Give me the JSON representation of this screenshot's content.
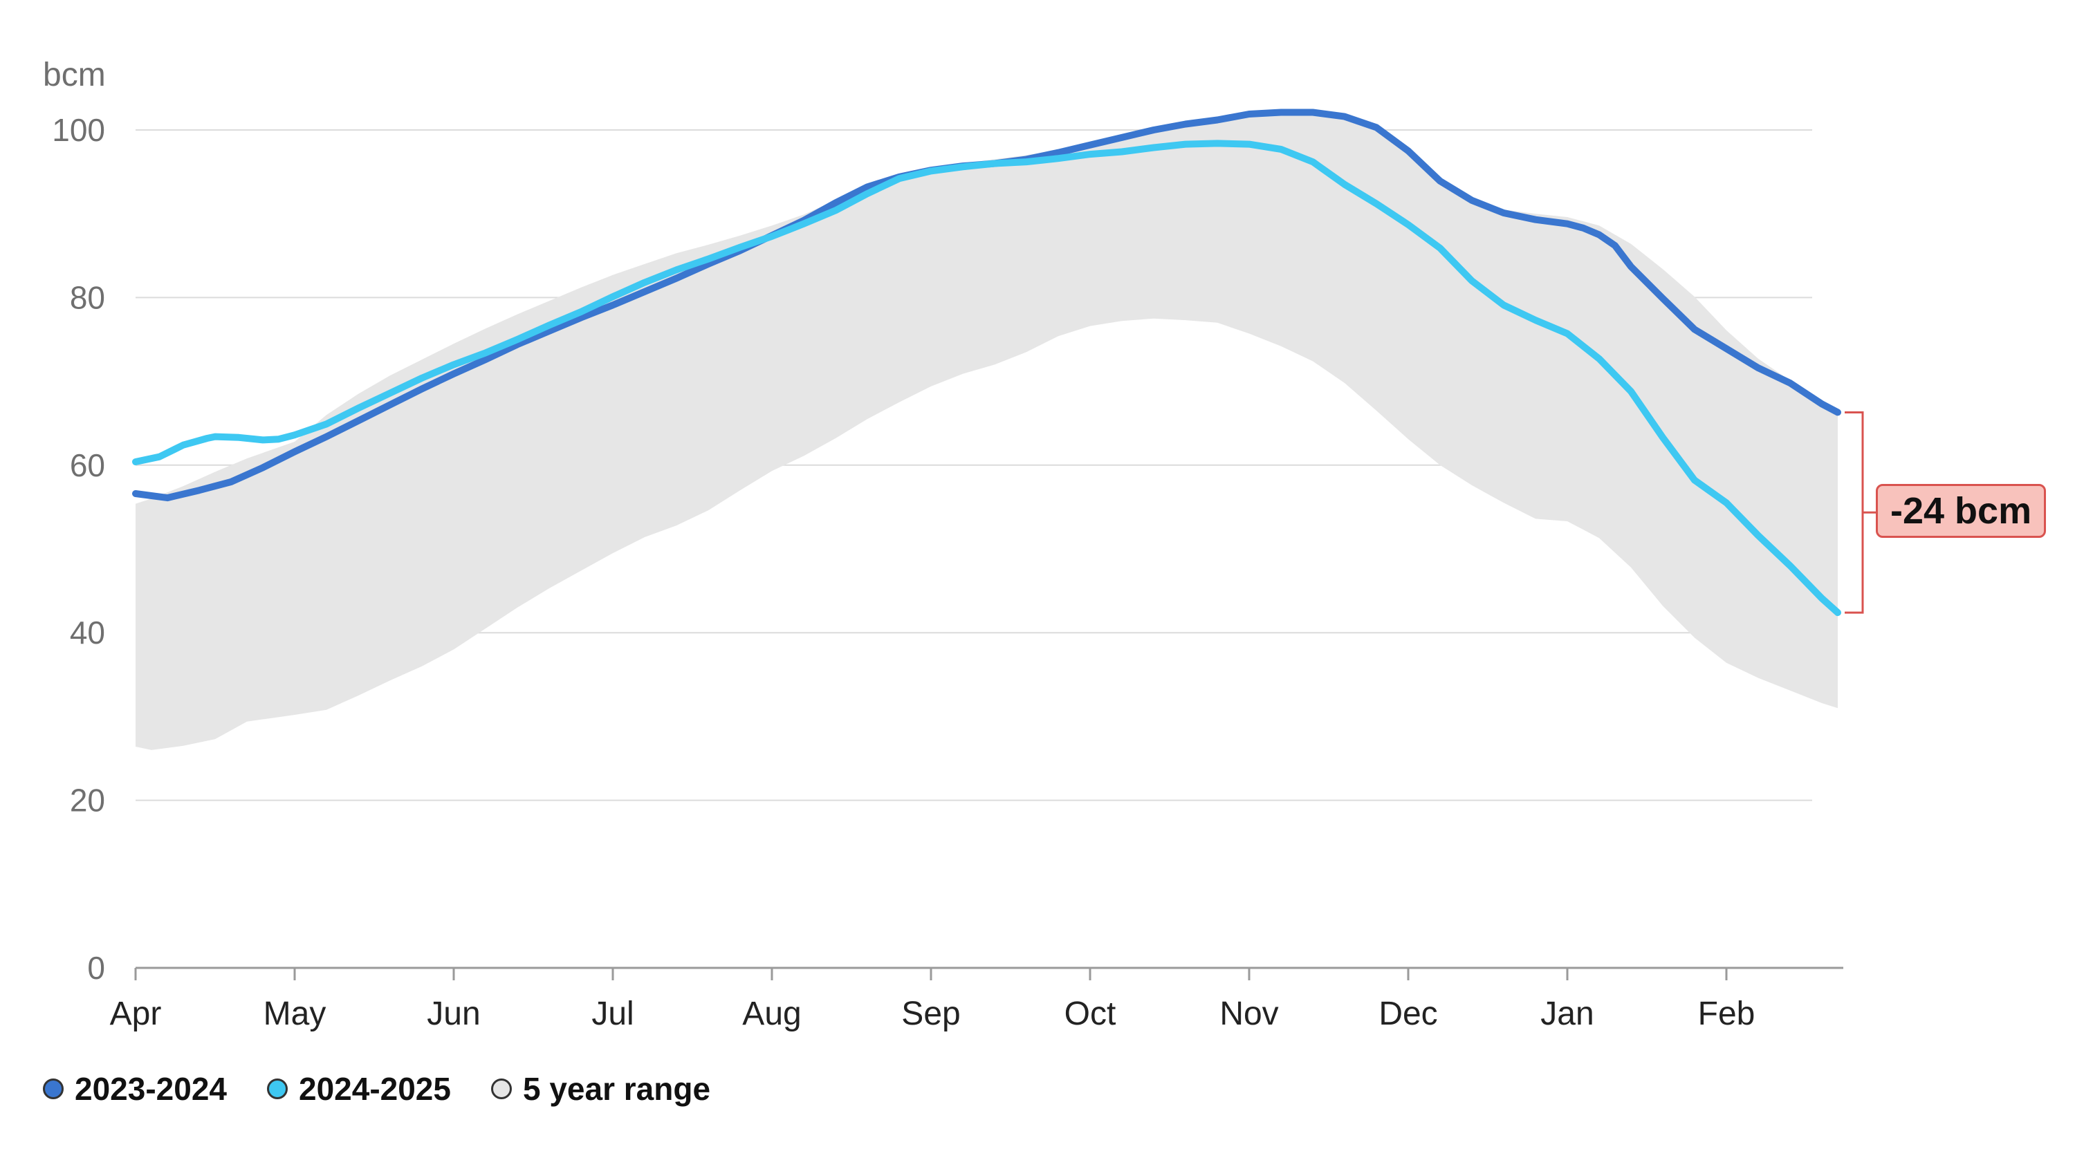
{
  "chart_data": {
    "type": "line",
    "unit_label": "bcm",
    "ylim": [
      0,
      100
    ],
    "y_ticks": [
      0,
      20,
      40,
      60,
      80,
      100
    ],
    "x_months": [
      "Apr",
      "May",
      "Jun",
      "Jul",
      "Aug",
      "Sep",
      "Oct",
      "Nov",
      "Dec",
      "Jan",
      "Feb"
    ],
    "x_range_months": [
      0,
      10.7
    ],
    "grid": "horizontal",
    "legend_position": "bottom-left",
    "series": [
      {
        "name": "2023-2024",
        "color": "#3a76cf",
        "x": [
          0,
          0.2,
          0.4,
          0.6,
          0.8,
          1.0,
          1.2,
          1.4,
          1.6,
          1.8,
          2.0,
          2.2,
          2.4,
          2.6,
          2.8,
          3.0,
          3.2,
          3.4,
          3.6,
          3.8,
          4.0,
          4.2,
          4.4,
          4.6,
          4.8,
          5.0,
          5.2,
          5.4,
          5.6,
          5.8,
          6.0,
          6.2,
          6.4,
          6.6,
          6.8,
          7.0,
          7.2,
          7.4,
          7.6,
          7.8,
          8.0,
          8.2,
          8.4,
          8.6,
          8.8,
          9.0,
          9.1,
          9.2,
          9.3,
          9.4,
          9.6,
          9.8,
          10.0,
          10.2,
          10.4,
          10.6,
          10.7
        ],
        "values": [
          56.6,
          56.1,
          57.0,
          58.0,
          59.7,
          61.6,
          63.4,
          65.3,
          67.2,
          69.1,
          70.9,
          72.6,
          74.4,
          76.0,
          77.6,
          79.1,
          80.7,
          82.3,
          84.0,
          85.6,
          87.4,
          89.2,
          91.3,
          93.2,
          94.4,
          95.2,
          95.7,
          96.0,
          96.5,
          97.3,
          98.2,
          99.1,
          100.0,
          100.7,
          101.2,
          101.9,
          102.1,
          102.1,
          101.6,
          100.3,
          97.5,
          93.9,
          91.6,
          90.1,
          89.3,
          88.8,
          88.3,
          87.5,
          86.2,
          83.7,
          79.9,
          76.2,
          73.9,
          71.6,
          69.8,
          67.3,
          66.3
        ]
      },
      {
        "name": "2024-2025",
        "color": "#3ec8f2",
        "x": [
          0,
          0.15,
          0.3,
          0.45,
          0.5,
          0.65,
          0.8,
          0.9,
          1.0,
          1.2,
          1.4,
          1.6,
          1.8,
          2.0,
          2.2,
          2.4,
          2.6,
          2.8,
          3.0,
          3.2,
          3.4,
          3.6,
          3.8,
          4.0,
          4.2,
          4.4,
          4.6,
          4.8,
          5.0,
          5.2,
          5.4,
          5.6,
          5.8,
          6.0,
          6.2,
          6.4,
          6.6,
          6.8,
          7.0,
          7.2,
          7.4,
          7.6,
          7.8,
          8.0,
          8.2,
          8.4,
          8.6,
          8.8,
          9.0,
          9.2,
          9.4,
          9.6,
          9.8,
          10.0,
          10.2,
          10.4,
          10.6,
          10.7
        ],
        "values": [
          60.4,
          61.0,
          62.4,
          63.2,
          63.4,
          63.3,
          63.0,
          63.1,
          63.6,
          64.9,
          66.8,
          68.6,
          70.4,
          72.0,
          73.4,
          75.0,
          76.7,
          78.3,
          80.1,
          81.8,
          83.3,
          84.6,
          86.0,
          87.3,
          88.8,
          90.4,
          92.4,
          94.2,
          95.1,
          95.6,
          96.0,
          96.2,
          96.6,
          97.1,
          97.4,
          97.9,
          98.3,
          98.4,
          98.3,
          97.7,
          96.2,
          93.5,
          91.2,
          88.7,
          85.9,
          82.0,
          79.1,
          77.3,
          75.7,
          72.7,
          68.8,
          63.3,
          58.2,
          55.5,
          51.6,
          48.0,
          44.1,
          42.4
        ]
      },
      {
        "name": "5 year range",
        "type": "area",
        "color": "#e6e6e6",
        "x": [
          0,
          0.1,
          0.3,
          0.5,
          0.7,
          1.0,
          1.2,
          1.4,
          1.6,
          1.8,
          2.0,
          2.2,
          2.4,
          2.6,
          2.8,
          3.0,
          3.2,
          3.4,
          3.6,
          3.8,
          4.0,
          4.2,
          4.4,
          4.6,
          4.8,
          5.0,
          5.2,
          5.4,
          5.6,
          5.8,
          6.0,
          6.2,
          6.4,
          6.6,
          6.8,
          7.0,
          7.2,
          7.4,
          7.6,
          7.8,
          8.0,
          8.2,
          8.4,
          8.6,
          8.8,
          9.0,
          9.2,
          9.4,
          9.6,
          9.8,
          10.0,
          10.2,
          10.4,
          10.6,
          10.7
        ],
        "upper": [
          55.4,
          56.0,
          57.5,
          59.2,
          60.8,
          62.8,
          66.0,
          68.5,
          70.7,
          72.6,
          74.5,
          76.3,
          78.0,
          79.6,
          81.2,
          82.7,
          84.0,
          85.3,
          86.3,
          87.4,
          88.6,
          89.9,
          91.6,
          93.4,
          94.6,
          95.4,
          96.0,
          96.5,
          97.0,
          97.6,
          98.3,
          99.2,
          100.1,
          100.7,
          101.3,
          102.0,
          102.2,
          102.2,
          101.8,
          100.6,
          97.8,
          94.3,
          91.9,
          90.5,
          90.0,
          89.6,
          88.6,
          86.4,
          83.4,
          80.1,
          76.1,
          72.7,
          70.1,
          67.8,
          66.3
        ],
        "lower": [
          26.4,
          26.0,
          26.5,
          27.3,
          29.4,
          30.2,
          30.8,
          32.5,
          34.3,
          36.0,
          38.0,
          40.5,
          43.0,
          45.3,
          47.4,
          49.5,
          51.4,
          52.8,
          54.6,
          57.0,
          59.3,
          61.1,
          63.2,
          65.5,
          67.5,
          69.4,
          70.9,
          72.0,
          73.5,
          75.4,
          76.6,
          77.2,
          77.5,
          77.3,
          77.0,
          75.7,
          74.2,
          72.4,
          69.8,
          66.5,
          63.1,
          60.0,
          57.6,
          55.5,
          53.6,
          53.3,
          51.3,
          47.8,
          43.2,
          39.4,
          36.4,
          34.6,
          33.1,
          31.6,
          31.0
        ]
      }
    ],
    "annotation": {
      "label": "-24 bcm",
      "x": 10.7,
      "y_from": 66.3,
      "y_to": 42.4,
      "color": "#d9534f",
      "fill": "#f8c2bc"
    }
  },
  "legend": {
    "items": [
      {
        "label": "2023-2024",
        "color": "#3a76cf"
      },
      {
        "label": "2024-2025",
        "color": "#3ec8f2"
      },
      {
        "label": "5 year range",
        "color": "#e6e6e6"
      }
    ]
  }
}
